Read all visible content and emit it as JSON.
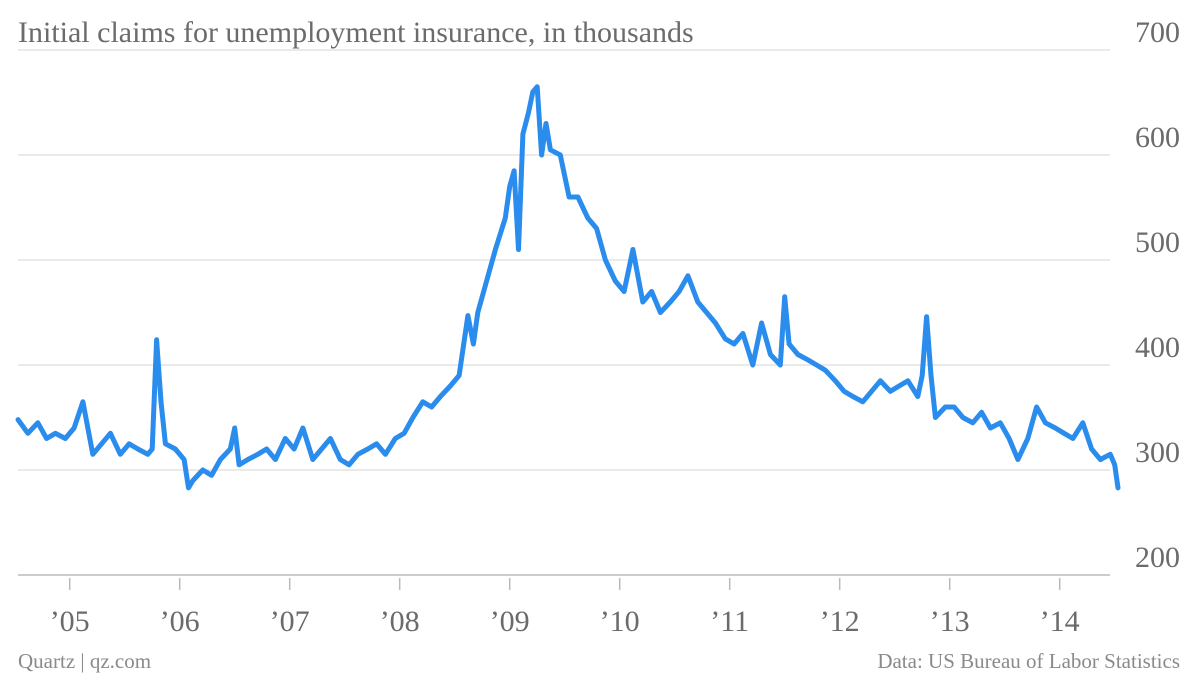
{
  "chart_data": {
    "type": "line",
    "title": "Initial claims for unemployment insurance, in thousands",
    "credit": "Quartz | qz.com",
    "source": "Data: US Bureau of Labor Statistics",
    "color": "#2a8cec",
    "grid": true,
    "x": [
      2004.53,
      2004.62,
      2004.71,
      2004.79,
      2004.87,
      2004.96,
      2005.04,
      2005.12,
      2005.21,
      2005.29,
      2005.37,
      2005.46,
      2005.54,
      2005.62,
      2005.71,
      2005.75,
      2005.79,
      2005.83,
      2005.87,
      2005.96,
      2006.04,
      2006.08,
      2006.12,
      2006.21,
      2006.29,
      2006.37,
      2006.46,
      2006.5,
      2006.54,
      2006.62,
      2006.71,
      2006.79,
      2006.87,
      2006.96,
      2007.04,
      2007.12,
      2007.21,
      2007.29,
      2007.37,
      2007.46,
      2007.54,
      2007.62,
      2007.71,
      2007.79,
      2007.87,
      2007.96,
      2008.04,
      2008.12,
      2008.21,
      2008.29,
      2008.37,
      2008.46,
      2008.54,
      2008.62,
      2008.67,
      2008.71,
      2008.79,
      2008.87,
      2008.96,
      2009.0,
      2009.04,
      2009.08,
      2009.12,
      2009.17,
      2009.21,
      2009.25,
      2009.29,
      2009.33,
      2009.37,
      2009.46,
      2009.54,
      2009.62,
      2009.71,
      2009.79,
      2009.87,
      2009.96,
      2010.04,
      2010.12,
      2010.21,
      2010.29,
      2010.37,
      2010.46,
      2010.54,
      2010.62,
      2010.71,
      2010.79,
      2010.87,
      2010.96,
      2011.04,
      2011.12,
      2011.21,
      2011.29,
      2011.37,
      2011.46,
      2011.5,
      2011.54,
      2011.62,
      2011.71,
      2011.79,
      2011.87,
      2011.96,
      2012.04,
      2012.12,
      2012.21,
      2012.29,
      2012.37,
      2012.46,
      2012.54,
      2012.62,
      2012.71,
      2012.75,
      2012.79,
      2012.83,
      2012.87,
      2012.96,
      2013.04,
      2013.12,
      2013.21,
      2013.29,
      2013.37,
      2013.46,
      2013.54,
      2013.62,
      2013.71,
      2013.79,
      2013.87,
      2013.96,
      2014.04,
      2014.12,
      2014.21,
      2014.29,
      2014.37,
      2014.46,
      2014.5,
      2014.53
    ],
    "values": [
      348,
      335,
      345,
      330,
      335,
      330,
      340,
      365,
      315,
      325,
      335,
      315,
      325,
      320,
      315,
      320,
      424,
      365,
      325,
      320,
      310,
      283,
      290,
      300,
      295,
      310,
      320,
      340,
      305,
      310,
      315,
      320,
      310,
      330,
      320,
      340,
      310,
      320,
      330,
      310,
      305,
      315,
      320,
      325,
      315,
      330,
      335,
      350,
      365,
      360,
      370,
      380,
      390,
      447,
      420,
      450,
      480,
      510,
      540,
      570,
      585,
      510,
      620,
      640,
      660,
      665,
      600,
      630,
      605,
      600,
      560,
      560,
      540,
      530,
      500,
      480,
      470,
      510,
      460,
      470,
      450,
      460,
      470,
      485,
      460,
      450,
      440,
      425,
      420,
      430,
      400,
      440,
      410,
      400,
      465,
      420,
      410,
      405,
      400,
      395,
      385,
      375,
      370,
      365,
      375,
      385,
      375,
      380,
      385,
      370,
      390,
      446,
      390,
      350,
      360,
      360,
      350,
      345,
      355,
      340,
      345,
      330,
      310,
      330,
      360,
      345,
      340,
      335,
      330,
      345,
      320,
      310,
      315,
      305,
      283
    ],
    "xlim": [
      2004.53,
      2014.53
    ],
    "xticks": [
      {
        "value": 2005,
        "label": "’05"
      },
      {
        "value": 2006,
        "label": "’06"
      },
      {
        "value": 2007,
        "label": "’07"
      },
      {
        "value": 2008,
        "label": "’08"
      },
      {
        "value": 2009,
        "label": "’09"
      },
      {
        "value": 2010,
        "label": "’10"
      },
      {
        "value": 2011,
        "label": "’11"
      },
      {
        "value": 2012,
        "label": "’12"
      },
      {
        "value": 2013,
        "label": "’13"
      },
      {
        "value": 2014,
        "label": "’14"
      }
    ],
    "ylim": [
      200,
      700
    ],
    "yticks": [
      200,
      300,
      400,
      500,
      600,
      700
    ]
  }
}
